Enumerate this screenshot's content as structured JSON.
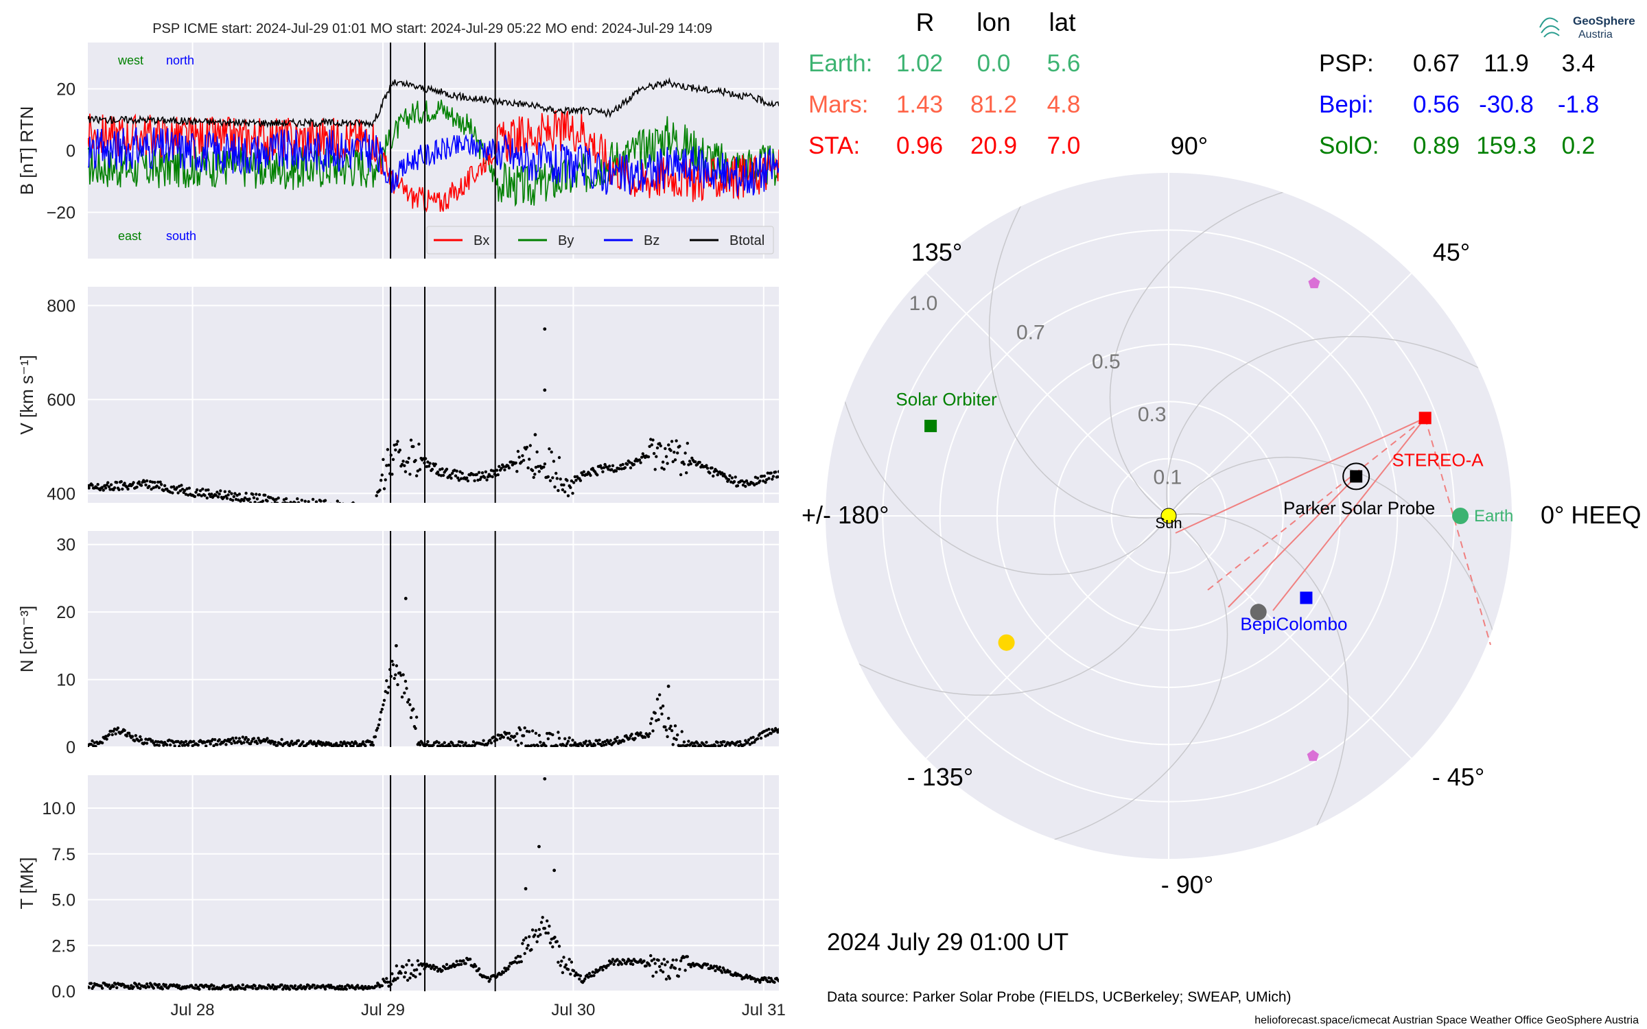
{
  "header": {
    "title": "PSP    ICME start: 2024-Jul-29 01:01   MO start: 2024-Jul-29 05:22   MO end: 2024-Jul-29 14:09",
    "logo_line1": "GeoSphere",
    "logo_line2": "Austria",
    "timestamp": "2024 July 29  01:00 UT",
    "data_source": "Data source: Parker Solar Probe (FIELDS, UCBerkeley; SWEAP, UMich)",
    "footer": "helioforecast.space/icmecat   Austrian Space Weather Office   GeoSphere Austria"
  },
  "colors": {
    "panel_bg": "#eaeaf2",
    "grid": "#ffffff",
    "bx": "#ff0000",
    "by": "#008000",
    "bz": "#0000ff",
    "btotal": "#000000",
    "earth": "#3cb371",
    "mars": "#ff6347",
    "sta": "#ff0000",
    "psp": "#000000",
    "bepi": "#0000ff",
    "solo": "#008000",
    "sun": "#ffff00",
    "planet_magenta": "#da70d6",
    "mercury": "#696969",
    "venus": "#ffd700"
  },
  "chart_data": [
    {
      "type": "line",
      "panel": "magnetic_field",
      "ylabel": "B [nT] RTN",
      "ylim": [
        -35,
        35
      ],
      "yticks": [
        {
          "v": 20,
          "label": "20"
        },
        {
          "v": 0,
          "label": "0"
        },
        {
          "v": -20,
          "label": "−20"
        }
      ],
      "annotations": [
        {
          "text": "west",
          "color": "#008000"
        },
        {
          "text": "north",
          "color": "#0000ff"
        },
        {
          "text": "east",
          "color": "#008000"
        },
        {
          "text": "south",
          "color": "#0000ff"
        }
      ],
      "legend": {
        "placement": "lower-right",
        "entries": [
          "Bx",
          "By",
          "Bz",
          "Btotal"
        ]
      },
      "x": [
        27.5,
        27.75,
        28.0,
        28.25,
        28.5,
        28.75,
        28.95,
        29.05,
        29.15,
        29.3,
        29.45,
        29.6,
        29.75,
        29.9,
        30.05,
        30.2,
        30.35,
        30.5,
        30.65,
        30.8,
        30.95,
        31.05
      ],
      "series": [
        {
          "name": "Btotal",
          "values": [
            10,
            10,
            9.5,
            9,
            9,
            9,
            9,
            22,
            21,
            19,
            17,
            16,
            15,
            13,
            13,
            12,
            20,
            22,
            20,
            19,
            17,
            15
          ]
        },
        {
          "name": "Bx",
          "values": [
            5,
            5,
            4,
            4,
            4,
            4,
            4,
            -10,
            -15,
            -17,
            -10,
            2,
            5,
            6,
            7,
            -5,
            -10,
            -8,
            -10,
            -9,
            -8,
            -6
          ]
        },
        {
          "name": "By",
          "values": [
            -5,
            -6,
            -5,
            -5,
            -6,
            -5,
            -5,
            5,
            12,
            14,
            8,
            -10,
            -12,
            -10,
            -8,
            -3,
            0,
            5,
            0,
            -5,
            -5,
            -5
          ]
        },
        {
          "name": "Bz",
          "values": [
            0,
            1,
            0,
            -1,
            0,
            0,
            0,
            -10,
            -3,
            0,
            2,
            0,
            -3,
            -5,
            -5,
            -8,
            -8,
            -5,
            -5,
            -8,
            -8,
            -5
          ]
        }
      ]
    },
    {
      "type": "scatter",
      "panel": "velocity",
      "ylabel": "V [km s⁻¹]",
      "ylim": [
        380,
        840
      ],
      "yticks": [
        {
          "v": 400,
          "label": "400"
        },
        {
          "v": 600,
          "label": "600"
        },
        {
          "v": 800,
          "label": "800"
        }
      ],
      "x": [
        27.5,
        27.75,
        28.0,
        28.25,
        28.5,
        28.75,
        28.95,
        29.02,
        29.15,
        29.3,
        29.45,
        29.55,
        29.7,
        29.85,
        30.0,
        30.15,
        30.3,
        30.45,
        30.6,
        30.75,
        30.9,
        31.05
      ],
      "values": [
        412,
        420,
        404,
        392,
        382,
        374,
        368,
        462,
        482,
        448,
        432,
        438,
        470,
        462,
        428,
        452,
        462,
        492,
        472,
        444,
        418,
        438
      ],
      "outliers": [
        {
          "x": 29.85,
          "y": 750
        },
        {
          "x": 29.85,
          "y": 620
        },
        {
          "x": 29.8,
          "y": 525
        }
      ]
    },
    {
      "type": "scatter",
      "panel": "density",
      "ylabel": "N [cm⁻³]",
      "ylim": [
        0,
        32
      ],
      "yticks": [
        {
          "v": 0,
          "label": "0"
        },
        {
          "v": 10,
          "label": "10"
        },
        {
          "v": 20,
          "label": "20"
        },
        {
          "v": 30,
          "label": "30"
        }
      ],
      "x": [
        27.5,
        27.6,
        27.75,
        28.0,
        28.25,
        28.5,
        28.75,
        28.95,
        29.05,
        29.12,
        29.2,
        29.35,
        29.5,
        29.65,
        29.8,
        30.0,
        30.2,
        30.4,
        30.45,
        30.55,
        30.7,
        30.9,
        31.05
      ],
      "values": [
        0.5,
        2.5,
        0.8,
        0.4,
        1.0,
        0.6,
        0.3,
        0.5,
        12,
        8,
        0.4,
        0.3,
        0.3,
        1.8,
        0.3,
        0.3,
        0.8,
        2.0,
        6.0,
        0.4,
        0.3,
        0.4,
        2.5
      ],
      "outliers": [
        {
          "x": 29.12,
          "y": 22
        },
        {
          "x": 29.07,
          "y": 15
        },
        {
          "x": 30.5,
          "y": 9
        }
      ]
    },
    {
      "type": "scatter",
      "panel": "temperature",
      "ylabel": "T [MK]",
      "ylim": [
        0,
        11.8
      ],
      "yticks": [
        {
          "v": 0,
          "label": "0.0"
        },
        {
          "v": 2.5,
          "label": "2.5"
        },
        {
          "v": 5,
          "label": "5.0"
        },
        {
          "v": 7.5,
          "label": "7.5"
        },
        {
          "v": 10,
          "label": "10.0"
        }
      ],
      "x": [
        27.5,
        27.75,
        28.0,
        28.25,
        28.5,
        28.75,
        28.95,
        29.05,
        29.2,
        29.3,
        29.45,
        29.55,
        29.65,
        29.75,
        29.85,
        29.95,
        30.05,
        30.2,
        30.35,
        30.5,
        30.65,
        30.8,
        30.95,
        31.05
      ],
      "values": [
        0.3,
        0.3,
        0.2,
        0.2,
        0.2,
        0.2,
        0.2,
        0.7,
        1.4,
        1.2,
        1.7,
        0.6,
        1.2,
        2.5,
        3.6,
        1.4,
        0.6,
        1.6,
        1.6,
        1.1,
        1.5,
        1.1,
        0.6,
        0.6
      ],
      "outliers": [
        {
          "x": 29.85,
          "y": 11.6
        },
        {
          "x": 29.82,
          "y": 7.9
        },
        {
          "x": 29.9,
          "y": 6.6
        },
        {
          "x": 29.75,
          "y": 5.6
        }
      ]
    }
  ],
  "time_axis": {
    "xlim": [
      27.45,
      31.08
    ],
    "ticks": [
      {
        "v": 28,
        "label": "Jul 28"
      },
      {
        "v": 29,
        "label": "Jul 29"
      },
      {
        "v": 30,
        "label": "Jul 30"
      },
      {
        "v": 31,
        "label": "Jul 31"
      }
    ],
    "event_lines": [
      29.04,
      29.22,
      29.59
    ]
  },
  "position_table": {
    "headers": [
      "R",
      "lon",
      "lat"
    ],
    "left_rows": [
      {
        "name": "Earth:",
        "r": "1.02",
        "lon": "0.0",
        "lat": "5.6",
        "color": "#3cb371"
      },
      {
        "name": "Mars:",
        "r": "1.43",
        "lon": "81.2",
        "lat": "4.8",
        "color": "#ff6347"
      },
      {
        "name": "STA:",
        "r": "0.96",
        "lon": "20.9",
        "lat": "7.0",
        "color": "#ff0000"
      }
    ],
    "right_rows": [
      {
        "name": "PSP:",
        "r": "0.67",
        "lon": "11.9",
        "lat": "3.4",
        "color": "#000000"
      },
      {
        "name": "Bepi:",
        "r": "0.56",
        "lon": "-30.8",
        "lat": "-1.8",
        "color": "#0000ff"
      },
      {
        "name": "SolO:",
        "r": "0.89",
        "lon": "159.3",
        "lat": "0.2",
        "color": "#008000"
      }
    ]
  },
  "polar_plot": {
    "rmax": 1.2,
    "radial_ticks": [
      "0.1",
      "0.3",
      "0.5",
      "0.7",
      "1.0"
    ],
    "angle_labels": [
      {
        "deg": 90,
        "label": "90°"
      },
      {
        "deg": 45,
        "label": "45°"
      },
      {
        "deg": 135,
        "label": "135°"
      },
      {
        "deg": 0,
        "label": "0° HEEQ"
      },
      {
        "deg": 180,
        "label": "+/- 180°"
      },
      {
        "deg": -45,
        "label": "- 45°"
      },
      {
        "deg": -135,
        "label": "- 135°"
      },
      {
        "deg": -90,
        "label": "- 90°"
      }
    ],
    "bodies": [
      {
        "key": "sun",
        "label": "Sun",
        "r": 0.0,
        "lon": 0.0,
        "marker": "circle",
        "color": "#ffff00"
      },
      {
        "key": "earth",
        "label": "Earth",
        "r": 1.02,
        "lon": 0.0,
        "marker": "circle",
        "color": "#3cb371"
      },
      {
        "key": "stereo_a",
        "label": "STEREO-A",
        "r": 0.96,
        "lon": 20.9,
        "marker": "square",
        "color": "#ff0000"
      },
      {
        "key": "psp",
        "label": "Parker Solar Probe",
        "r": 0.67,
        "lon": 11.9,
        "marker": "square",
        "color": "#000000"
      },
      {
        "key": "solar_orbiter",
        "label": "Solar Orbiter",
        "r": 0.89,
        "lon": 159.3,
        "marker": "square",
        "color": "#008000"
      },
      {
        "key": "bepicolombo",
        "label": "BepiColombo",
        "r": 0.56,
        "lon": -30.8,
        "marker": "square",
        "color": "#0000ff"
      },
      {
        "key": "mercury",
        "label": "",
        "r": 0.46,
        "lon": -47.0,
        "marker": "circle",
        "color": "#696969"
      },
      {
        "key": "venus",
        "label": "",
        "r": 0.72,
        "lon": -142.0,
        "marker": "circle",
        "color": "#ffd700"
      },
      {
        "key": "planet_upper",
        "label": "",
        "r": 0.96,
        "lon": 58.0,
        "marker": "pentagon",
        "color": "#da70d6"
      },
      {
        "key": "planet_lower",
        "label": "",
        "r": 0.98,
        "lon": -59.0,
        "marker": "pentagon",
        "color": "#da70d6"
      }
    ]
  }
}
